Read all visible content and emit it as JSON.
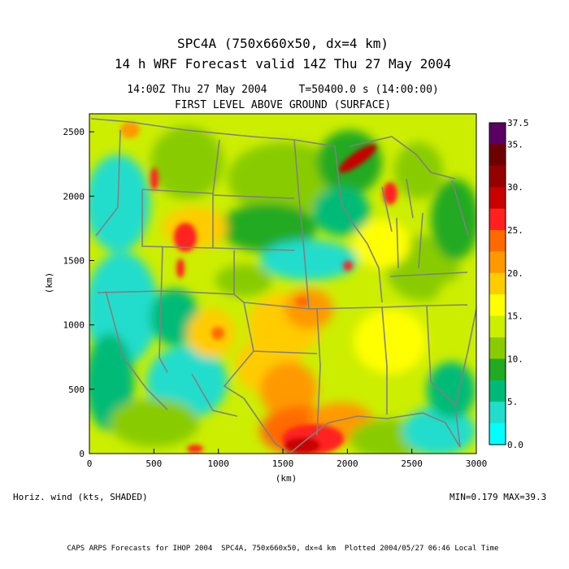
{
  "header": {
    "title_line1": "SPC4A (750x660x50, dx=4 km)",
    "title_line2": "14 h WRF Forecast valid 14Z Thu 27 May 2004",
    "subtitle_line1": "14:00Z Thu 27 May 2004     T=50400.0 s (14:00:00)",
    "subtitle_line2": "FIRST LEVEL ABOVE GROUND (SURFACE)"
  },
  "plot": {
    "xlabel": "(km)",
    "ylabel": "(km)",
    "x_ticks": [
      "0",
      "500",
      "1000",
      "1500",
      "2000",
      "2500",
      "3000"
    ],
    "y_ticks": [
      "0",
      "500",
      "1000",
      "1500",
      "2000",
      "2500"
    ],
    "xlim": [
      0,
      3000
    ],
    "ylim": [
      0,
      2640
    ]
  },
  "colorbar": {
    "labels": [
      "37.5",
      "35.",
      "30.",
      "25.",
      "20.",
      "15.",
      "10.",
      "5.",
      "0.0"
    ],
    "colors": [
      "#5a0064",
      "#6e0000",
      "#960000",
      "#c80000",
      "#ff2020",
      "#ff6a00",
      "#ff9900",
      "#ffcc00",
      "#ffff00",
      "#ccee00",
      "#88cc00",
      "#22aa22",
      "#00bb77",
      "#22ddcc",
      "#00ffff"
    ]
  },
  "footer": {
    "variable": "Horiz. wind (kts, SHADED)",
    "minmax": "MIN=0.179 MAX=39.3",
    "credit": "CAPS ARPS Forecasts for IHOP 2004  SPC4A, 750x660x50, dx=4 km  Plotted 2004/05/27 06:46 Local Time"
  }
}
